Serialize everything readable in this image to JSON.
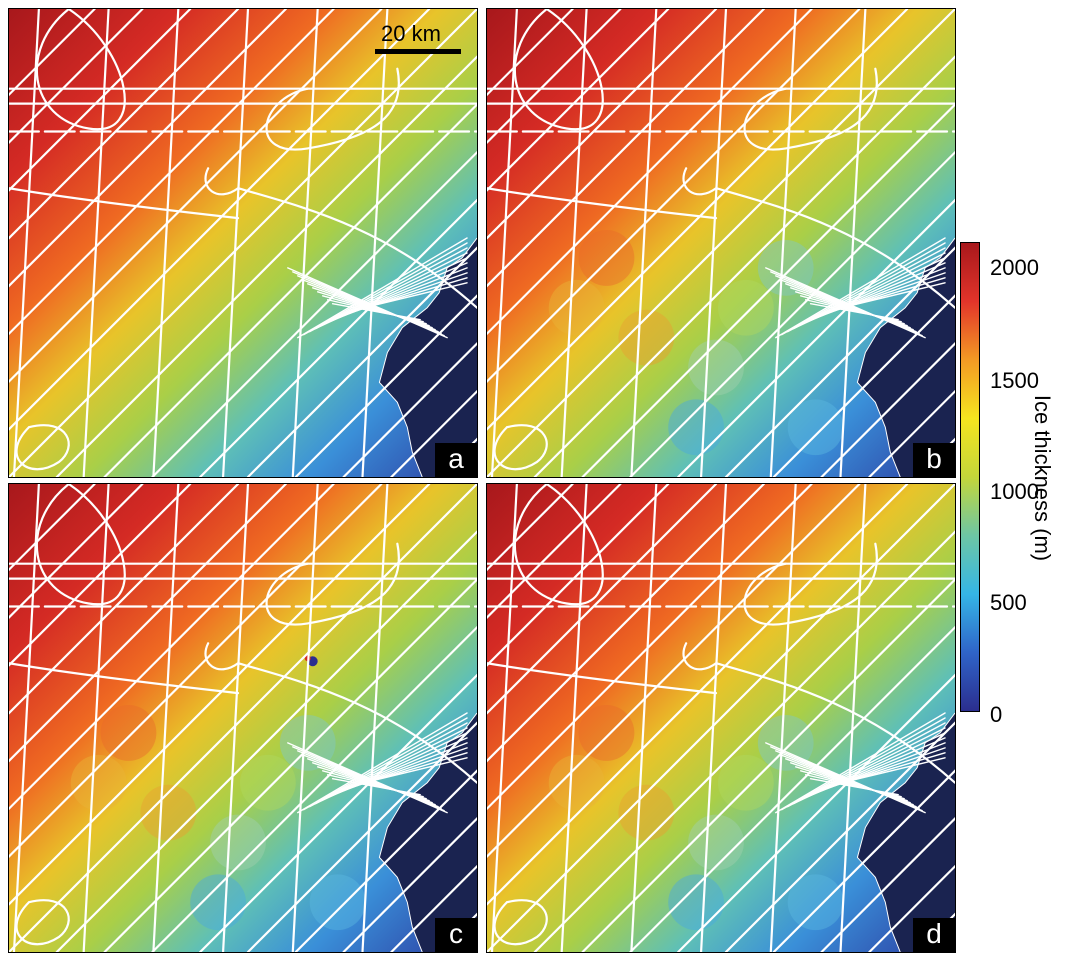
{
  "scalebar": {
    "label": "20 km"
  },
  "panels": [
    {
      "id": "a",
      "label": "a"
    },
    {
      "id": "b",
      "label": "b"
    },
    {
      "id": "c",
      "label": "c"
    },
    {
      "id": "d",
      "label": "d"
    }
  ],
  "colorbar": {
    "title": "Ice thickness (m)",
    "ticks": [
      "2000",
      "1500",
      "1000",
      "500",
      "0"
    ],
    "range": [
      0,
      2100
    ],
    "colormap": [
      "#2b2e8f",
      "#2f64c8",
      "#35b6e6",
      "#6dc6a4",
      "#c4d63a",
      "#f5e51f",
      "#f39a24",
      "#e2342a",
      "#a8181c"
    ]
  },
  "colors": {
    "flight_lines": "#ffffff",
    "coastline": "#ffffff",
    "ocean": "#1a2350"
  }
}
